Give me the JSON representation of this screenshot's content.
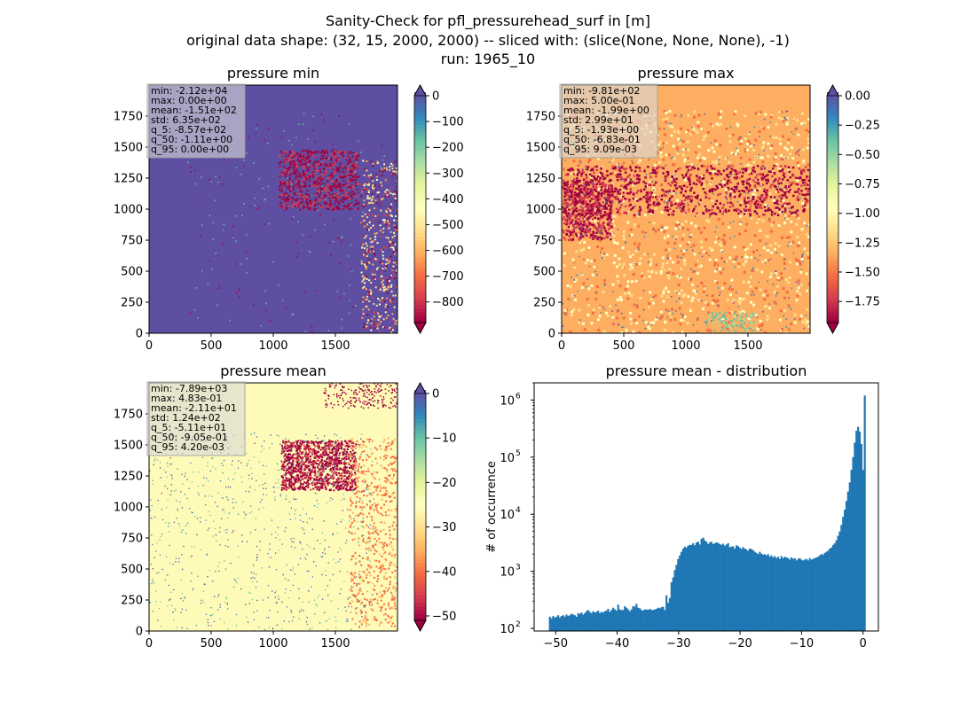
{
  "figure": {
    "title_lines": [
      "Sanity-Check for pfl_pressurehead_surf in [m]",
      "original data shape: (32, 15, 2000, 2000) -- sliced with: (slice(None, None, None), -1)",
      "run: 1965_10"
    ]
  },
  "colors": {
    "spectral": [
      "#9e0142",
      "#d53e4f",
      "#f46d43",
      "#fdae61",
      "#fee08b",
      "#ffffbf",
      "#e6f598",
      "#abdda4",
      "#66c2a5",
      "#3288bd",
      "#5e4fa2"
    ],
    "hist_bar": "#1f77b4"
  },
  "chart_data": [
    {
      "type": "heatmap",
      "title": "pressure min",
      "xlim": [
        0,
        2000
      ],
      "ylim": [
        0,
        2000
      ],
      "x_ticks": [
        0,
        500,
        1000,
        1500
      ],
      "y_ticks": [
        0,
        250,
        500,
        750,
        1000,
        1250,
        1500,
        1750
      ],
      "colorbar": {
        "min": -880,
        "max": 0,
        "ticks": [
          0,
          -100,
          -200,
          -300,
          -400,
          -500,
          -600,
          -700,
          -800
        ],
        "extend": "both",
        "tick_labels": [
          "0",
          "−100",
          "−200",
          "−300",
          "−400",
          "−500",
          "−600",
          "−700",
          "−800"
        ]
      },
      "stats": [
        "min: -2.12e+04",
        "max: 0.00e+00",
        "mean: -1.51e+02",
        "std: 6.35e+02",
        "q_5: -8.57e+02",
        "q_50: -1.11e+00",
        "q_95: 0.00e+00"
      ]
    },
    {
      "type": "heatmap",
      "title": "pressure max",
      "xlim": [
        0,
        2000
      ],
      "ylim": [
        0,
        2000
      ],
      "x_ticks": [
        0,
        500,
        1000,
        1500
      ],
      "y_ticks": [
        0,
        250,
        500,
        750,
        1000,
        1250,
        1500,
        1750
      ],
      "colorbar": {
        "min": -1.93,
        "max": 0.0,
        "ticks": [
          0.0,
          -0.25,
          -0.5,
          -0.75,
          -1.0,
          -1.25,
          -1.5,
          -1.75
        ],
        "extend": "both",
        "tick_labels": [
          "0.00",
          "−0.25",
          "−0.50",
          "−0.75",
          "−1.00",
          "−1.25",
          "−1.50",
          "−1.75"
        ]
      },
      "stats": [
        "min: -9.81e+02",
        "max: 5.00e-01",
        "mean: -1.99e+00",
        "std: 2.99e+01",
        "q_5: -1.93e+00",
        "q_50: -6.83e-01",
        "q_95: 9.09e-03"
      ]
    },
    {
      "type": "heatmap",
      "title": "pressure mean",
      "xlim": [
        0,
        2000
      ],
      "ylim": [
        0,
        2000
      ],
      "x_ticks": [
        0,
        500,
        1000,
        1500
      ],
      "y_ticks": [
        0,
        250,
        500,
        750,
        1000,
        1250,
        1500,
        1750
      ],
      "colorbar": {
        "min": -51,
        "max": 0,
        "ticks": [
          0,
          -10,
          -20,
          -30,
          -40,
          -50
        ],
        "extend": "both",
        "tick_labels": [
          "0",
          "−10",
          "−20",
          "−30",
          "−40",
          "−50"
        ]
      },
      "stats": [
        "min: -7.89e+03",
        "max: 4.83e-01",
        "mean: -2.11e+01",
        "std: 1.24e+02",
        "q_5: -5.11e+01",
        "q_50: -9.05e-01",
        "q_95: 4.20e-03"
      ]
    },
    {
      "type": "bar",
      "title": "pressure mean - distribution",
      "ylabel": "# of occurrence",
      "yscale": "log",
      "xlim": [
        -53.5,
        2.5
      ],
      "ylim": [
        90,
        2000000
      ],
      "x_ticks": [
        -50,
        -40,
        -30,
        -20,
        -10,
        0
      ],
      "x_tick_labels": [
        "−50",
        "−40",
        "−30",
        "−20",
        "−10",
        "0"
      ],
      "y_tick_labels": [
        "10",
        "10",
        "10",
        "10",
        "10"
      ],
      "y_tick_exponents": [
        "2",
        "3",
        "4",
        "5",
        "6"
      ],
      "y_ticks": [
        100,
        1000,
        10000,
        100000,
        1000000
      ],
      "bin_range": [
        -51.1,
        0.4
      ],
      "counts": [
        160,
        150,
        165,
        155,
        160,
        170,
        155,
        165,
        170,
        160,
        175,
        165,
        170,
        180,
        175,
        170,
        160,
        185,
        180,
        190,
        175,
        185,
        200,
        210,
        195,
        185,
        200,
        190,
        195,
        205,
        185,
        195,
        190,
        200,
        205,
        220,
        195,
        210,
        230,
        215,
        205,
        260,
        215,
        210,
        210,
        245,
        230,
        215,
        200,
        215,
        245,
        240,
        270,
        230,
        225,
        210,
        205,
        215,
        215,
        210,
        220,
        210,
        210,
        215,
        220,
        230,
        225,
        235,
        240,
        210,
        380,
        280,
        340,
        640,
        780,
        1050,
        1300,
        1650,
        1900,
        2200,
        2500,
        2700,
        2600,
        2800,
        2900,
        2900,
        3100,
        2850,
        3200,
        3300,
        2950,
        3700,
        3900,
        3500,
        3300,
        3000,
        3200,
        3300,
        3000,
        3100,
        3200,
        3150,
        3000,
        2900,
        3050,
        2800,
        2950,
        3100,
        2650,
        2700,
        2750,
        2500,
        2850,
        2750,
        2600,
        2450,
        2650,
        2500,
        2400,
        2300,
        2500,
        2450,
        2350,
        2200,
        2100,
        2000,
        2200,
        2050,
        1950,
        2000,
        1900,
        2000,
        1800,
        1900,
        1750,
        1850,
        1700,
        1800,
        1650,
        1850,
        1700,
        1800,
        1750,
        1700,
        1600,
        1750,
        1650,
        1700,
        1550,
        1650,
        1700,
        1600,
        1550,
        1600,
        1650,
        1550,
        1700,
        1600,
        1650,
        1700,
        1750,
        1800,
        1900,
        2000,
        1950,
        2100,
        2200,
        2300,
        2500,
        2600,
        2900,
        3100,
        3500,
        4200,
        5000,
        6500,
        9000,
        12000,
        17000,
        25000,
        36000,
        60000,
        100000,
        180000,
        290000,
        340000,
        280000,
        170000,
        60000,
        1200000
      ]
    }
  ]
}
